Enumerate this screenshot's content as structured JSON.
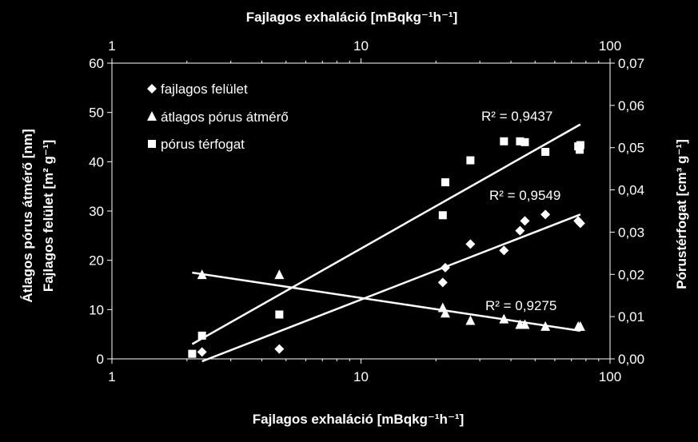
{
  "colors": {
    "background": "#000000",
    "foreground": "#ffffff"
  },
  "chart_data": {
    "type": "scatter",
    "x_scale": "log",
    "xlim": [
      1,
      100
    ],
    "x_ticks": [
      1,
      10,
      100
    ],
    "x_tick_labels": [
      "1",
      "10",
      "100"
    ],
    "xlabel_top": "Fajlagos exhaláció [mBqkg⁻¹h⁻¹]",
    "xlabel_bottom": "Fajlagos exhaláció [mBqkg⁻¹h⁻¹]",
    "y_left": {
      "label_line1": "Átlagos pórus átmérő [nm]",
      "label_line2": "Fajlagos felület [m² g⁻¹]",
      "ylim": [
        0,
        60
      ],
      "ticks": [
        0,
        10,
        20,
        30,
        40,
        50,
        60
      ],
      "tick_labels": [
        "0",
        "10",
        "20",
        "30",
        "40",
        "50",
        "60"
      ]
    },
    "y_right": {
      "label": "Pórustérfogat [cm³ g⁻¹]",
      "ylim": [
        0,
        0.07
      ],
      "ticks": [
        0,
        0.01,
        0.02,
        0.03,
        0.04,
        0.05,
        0.06,
        0.07
      ],
      "tick_labels": [
        "0,00",
        "0,01",
        "0,02",
        "0,03",
        "0,04",
        "0,05",
        "0,06",
        "0,07"
      ]
    },
    "legend_position": "top-left",
    "series": [
      {
        "name": "fajlagos felület",
        "marker": "diamond",
        "axis": "left",
        "points": [
          [
            2.3,
            1.4
          ],
          [
            4.7,
            2.0
          ],
          [
            21.3,
            15.5
          ],
          [
            21.8,
            18.5
          ],
          [
            27.5,
            23.3
          ],
          [
            37.5,
            22.0
          ],
          [
            43.5,
            26.0
          ],
          [
            45.5,
            28.0
          ],
          [
            55.0,
            29.3
          ],
          [
            74.5,
            28.0
          ],
          [
            76.0,
            27.5
          ]
        ],
        "trend": {
          "x": [
            2.3,
            76.0
          ],
          "y": [
            -0.5,
            29.3
          ],
          "r2_label": "R² = 0,9549"
        }
      },
      {
        "name": "átlagos pórus átmérő",
        "marker": "triangle",
        "axis": "left",
        "points": [
          [
            2.3,
            17.0
          ],
          [
            4.7,
            17.0
          ],
          [
            21.3,
            10.3
          ],
          [
            21.8,
            9.2
          ],
          [
            27.5,
            7.7
          ],
          [
            37.5,
            8.0
          ],
          [
            43.5,
            6.9
          ],
          [
            45.5,
            6.9
          ],
          [
            55.0,
            6.5
          ],
          [
            74.5,
            6.5
          ],
          [
            76.0,
            6.5
          ]
        ],
        "trend": {
          "x": [
            2.1,
            76.0
          ],
          "y": [
            17.5,
            5.7
          ],
          "r2_label": "R² = 0,9275"
        }
      },
      {
        "name": "pórus térfogat",
        "marker": "square",
        "axis": "right",
        "points": [
          [
            2.1,
            0.0012
          ],
          [
            2.3,
            0.0055
          ],
          [
            4.7,
            0.0105
          ],
          [
            21.3,
            0.034
          ],
          [
            21.8,
            0.0418
          ],
          [
            27.5,
            0.047
          ],
          [
            37.5,
            0.0515
          ],
          [
            43.5,
            0.0515
          ],
          [
            45.5,
            0.0513
          ],
          [
            55.0,
            0.049
          ],
          [
            74.5,
            0.0503
          ],
          [
            75.5,
            0.0495
          ],
          [
            76.0,
            0.0506
          ]
        ],
        "trend": {
          "x": [
            2.1,
            76.0
          ],
          "y": [
            0.0035,
            0.0555
          ],
          "r2_label": "R² = 0,9437"
        }
      }
    ]
  }
}
